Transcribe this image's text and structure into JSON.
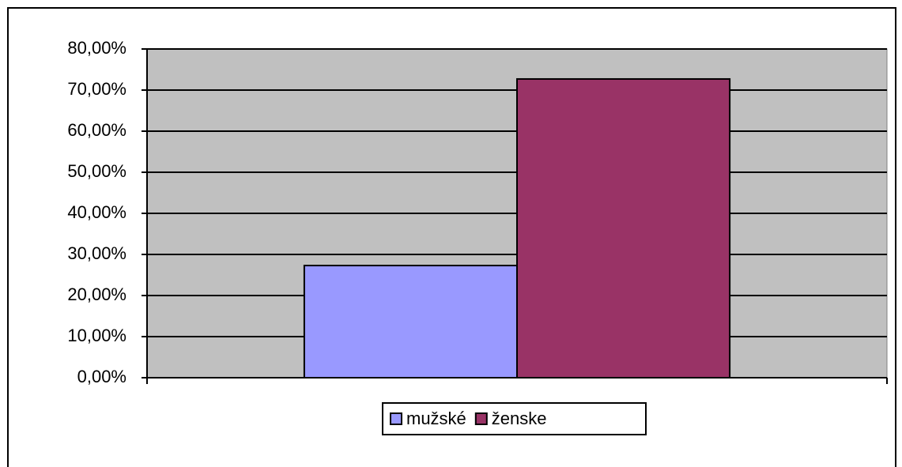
{
  "chart_data": {
    "type": "bar",
    "categories": [
      null
    ],
    "series": [
      {
        "name": "mužské",
        "color": "#9999ff",
        "values": [
          27.3
        ]
      },
      {
        "name": "ženske",
        "color": "#993366",
        "values": [
          72.7
        ]
      }
    ],
    "ylim": [
      0,
      80
    ],
    "yticks": [
      {
        "value": 0,
        "label": "0,00%"
      },
      {
        "value": 10,
        "label": "10,00%"
      },
      {
        "value": 20,
        "label": "20,00%"
      },
      {
        "value": 30,
        "label": "30,00%"
      },
      {
        "value": 40,
        "label": "40,00%"
      },
      {
        "value": 50,
        "label": "50,00%"
      },
      {
        "value": 60,
        "label": "60,00%"
      },
      {
        "value": 70,
        "label": "70,00%"
      },
      {
        "value": 80,
        "label": "80,00%"
      }
    ],
    "grid": true,
    "plot_background": "#c0c0c0",
    "legend": "bottom"
  }
}
